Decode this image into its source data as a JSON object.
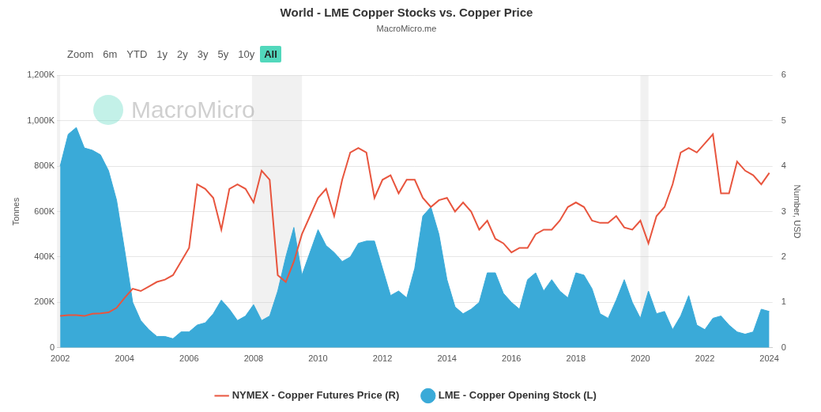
{
  "chart_data": {
    "type": "line",
    "title": "World - LME Copper Stocks vs. Copper Price",
    "subtitle": "MacroMicro.me",
    "watermark": "MacroMicro",
    "range_buttons": {
      "label": "Zoom",
      "options": [
        "6m",
        "YTD",
        "1y",
        "2y",
        "3y",
        "5y",
        "10y",
        "All"
      ],
      "selected": "All"
    },
    "x": [
      2002,
      2002.25,
      2002.5,
      2002.75,
      2003,
      2003.25,
      2003.5,
      2003.75,
      2004,
      2004.25,
      2004.5,
      2004.75,
      2005,
      2005.25,
      2005.5,
      2005.75,
      2006,
      2006.25,
      2006.5,
      2006.75,
      2007,
      2007.25,
      2007.5,
      2007.75,
      2008,
      2008.25,
      2008.5,
      2008.75,
      2009,
      2009.25,
      2009.5,
      2009.75,
      2010,
      2010.25,
      2010.5,
      2010.75,
      2011,
      2011.25,
      2011.5,
      2011.75,
      2012,
      2012.25,
      2012.5,
      2012.75,
      2013,
      2013.25,
      2013.5,
      2013.75,
      2014,
      2014.25,
      2014.5,
      2014.75,
      2015,
      2015.25,
      2015.5,
      2015.75,
      2016,
      2016.25,
      2016.5,
      2016.75,
      2017,
      2017.25,
      2017.5,
      2017.75,
      2018,
      2018.25,
      2018.5,
      2018.75,
      2019,
      2019.25,
      2019.5,
      2019.75,
      2020,
      2020.25,
      2020.5,
      2020.75,
      2021,
      2021.25,
      2021.5,
      2021.75,
      2022,
      2022.25,
      2022.5,
      2022.75,
      2023,
      2023.25,
      2023.5,
      2023.75,
      2024
    ],
    "xlim": [
      2001.9,
      2024.1
    ],
    "xticks": [
      2002,
      2004,
      2006,
      2008,
      2010,
      2012,
      2014,
      2016,
      2018,
      2020,
      2022,
      2024
    ],
    "ylabel": "Tonnes",
    "ylim": [
      0,
      1200000
    ],
    "yticks": [
      0,
      {
        "value": 200000,
        "label": "200K"
      },
      {
        "value": 400000,
        "label": "400K"
      },
      {
        "value": 600000,
        "label": "600K"
      },
      {
        "value": 800000,
        "label": "800K"
      },
      {
        "value": 1000000,
        "label": "1,000K"
      },
      {
        "value": 1200000,
        "label": "1,200K"
      }
    ],
    "y2label": "Number, USD",
    "y2lim": [
      0,
      6
    ],
    "y2ticks": [
      0,
      1,
      2,
      3,
      4,
      5,
      6
    ],
    "shaded_ranges": [
      [
        2001.9,
        2002.0
      ],
      [
        2007.95,
        2009.5
      ],
      [
        2020.0,
        2020.25
      ]
    ],
    "grid": true,
    "legend": "bottom",
    "series": [
      {
        "name": "LME - Copper Opening Stock (L)",
        "type": "area",
        "color": "#3aaad8",
        "values": [
          800000,
          940000,
          970000,
          880000,
          870000,
          850000,
          780000,
          650000,
          430000,
          200000,
          120000,
          80000,
          50000,
          50000,
          40000,
          70000,
          70000,
          100000,
          110000,
          150000,
          210000,
          170000,
          120000,
          140000,
          190000,
          120000,
          140000,
          250000,
          400000,
          530000,
          320000,
          420000,
          520000,
          450000,
          420000,
          380000,
          400000,
          460000,
          470000,
          470000,
          350000,
          230000,
          250000,
          220000,
          350000,
          580000,
          620000,
          500000,
          300000,
          180000,
          150000,
          170000,
          200000,
          330000,
          330000,
          240000,
          200000,
          170000,
          300000,
          330000,
          250000,
          300000,
          250000,
          220000,
          330000,
          320000,
          260000,
          150000,
          130000,
          210000,
          300000,
          200000,
          130000,
          250000,
          150000,
          160000,
          80000,
          140000,
          230000,
          100000,
          80000,
          130000,
          140000,
          100000,
          70000,
          60000,
          70000,
          170000,
          160000
        ]
      },
      {
        "name": "NYMEX - Copper Futures Price (R)",
        "type": "line",
        "color": "#e8553e",
        "axis": "y2",
        "values": [
          0.7,
          0.72,
          0.72,
          0.7,
          0.75,
          0.76,
          0.78,
          0.88,
          1.1,
          1.3,
          1.25,
          1.35,
          1.45,
          1.5,
          1.6,
          1.9,
          2.2,
          3.6,
          3.5,
          3.3,
          2.6,
          3.5,
          3.6,
          3.5,
          3.2,
          3.9,
          3.7,
          1.6,
          1.45,
          1.9,
          2.5,
          2.9,
          3.3,
          3.5,
          2.9,
          3.7,
          4.3,
          4.4,
          4.3,
          3.3,
          3.7,
          3.8,
          3.4,
          3.7,
          3.7,
          3.3,
          3.1,
          3.25,
          3.3,
          3.0,
          3.2,
          3.0,
          2.6,
          2.8,
          2.4,
          2.3,
          2.1,
          2.2,
          2.2,
          2.5,
          2.6,
          2.6,
          2.8,
          3.1,
          3.2,
          3.1,
          2.8,
          2.75,
          2.75,
          2.9,
          2.65,
          2.6,
          2.8,
          2.3,
          2.9,
          3.1,
          3.6,
          4.3,
          4.4,
          4.3,
          4.5,
          4.7,
          3.4,
          3.4,
          4.1,
          3.9,
          3.8,
          3.6,
          3.85
        ]
      }
    ]
  }
}
